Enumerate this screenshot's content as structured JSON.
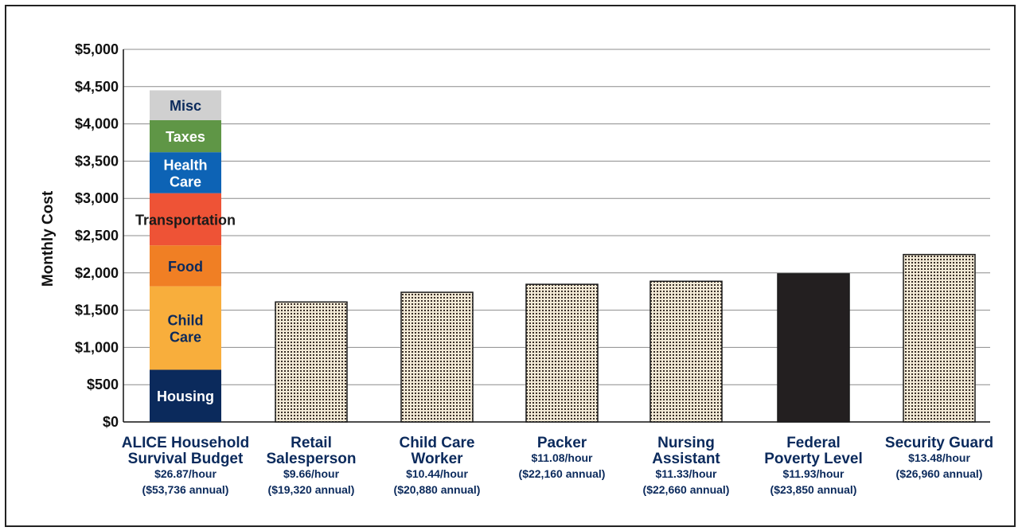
{
  "chart_data": {
    "type": "bar",
    "ylabel": "Monthly Cost",
    "ylim": [
      0,
      5000
    ],
    "yticks": [
      0,
      500,
      1000,
      1500,
      2000,
      2500,
      3000,
      3500,
      4000,
      4500,
      5000
    ],
    "ytick_labels": [
      "$0",
      "$500",
      "$1,000",
      "$1,500",
      "$2,000",
      "$2,500",
      "$3,000",
      "$3,500",
      "$4,000",
      "$4,500",
      "$5,000"
    ],
    "grid": true,
    "stacked_bar": {
      "label_lines": [
        "ALICE Household",
        "Survival Budget"
      ],
      "detail_lines": [
        "$26.87/hour",
        "($53,736 annual)"
      ],
      "segments": [
        {
          "name": "Housing",
          "label_lines": [
            "Housing"
          ],
          "value": 700,
          "color": "#0b2a5c",
          "text_color": "#ffffff"
        },
        {
          "name": "Child Care",
          "label_lines": [
            "Child",
            "Care"
          ],
          "value": 1120,
          "color": "#f8ae3c",
          "text_color": "#0b2a5c"
        },
        {
          "name": "Food",
          "label_lines": [
            "Food"
          ],
          "value": 550,
          "color": "#f07f24",
          "text_color": "#0b2a5c"
        },
        {
          "name": "Transportation",
          "label_lines": [
            "Transportation"
          ],
          "value": 700,
          "color": "#ee5336",
          "text_color": "#1a1a1a"
        },
        {
          "name": "Health Care",
          "label_lines": [
            "Health",
            "Care"
          ],
          "value": 550,
          "color": "#0d63b5",
          "text_color": "#ffffff"
        },
        {
          "name": "Taxes",
          "label_lines": [
            "Taxes"
          ],
          "value": 430,
          "color": "#5f9646",
          "text_color": "#ffffff"
        },
        {
          "name": "Misc",
          "label_lines": [
            "Misc"
          ],
          "value": 400,
          "color": "#d0d0d0",
          "text_color": "#0b2a5c"
        }
      ]
    },
    "bars": [
      {
        "label_lines": [
          "Retail",
          "Salesperson"
        ],
        "detail_lines": [
          "$9.66/hour",
          "($19,320 annual)"
        ],
        "value": 1610,
        "style": "dotted"
      },
      {
        "label_lines": [
          "Child Care",
          "Worker"
        ],
        "detail_lines": [
          "$10.44/hour",
          "($20,880 annual)"
        ],
        "value": 1740,
        "style": "dotted"
      },
      {
        "label_lines": [
          "Packer"
        ],
        "detail_lines": [
          "$11.08/hour",
          "($22,160 annual)"
        ],
        "value": 1847,
        "style": "dotted"
      },
      {
        "label_lines": [
          "Nursing",
          "Assistant"
        ],
        "detail_lines": [
          "$11.33/hour",
          "($22,660 annual)"
        ],
        "value": 1888,
        "style": "dotted"
      },
      {
        "label_lines": [
          "Federal",
          "Poverty Level"
        ],
        "detail_lines": [
          "$11.93/hour",
          "($23,850 annual)"
        ],
        "value": 1988,
        "style": "solid"
      },
      {
        "label_lines": [
          "Security Guard"
        ],
        "detail_lines": [
          "$13.48/hour",
          "($26,960 annual)"
        ],
        "value": 2247,
        "style": "dotted"
      }
    ]
  }
}
